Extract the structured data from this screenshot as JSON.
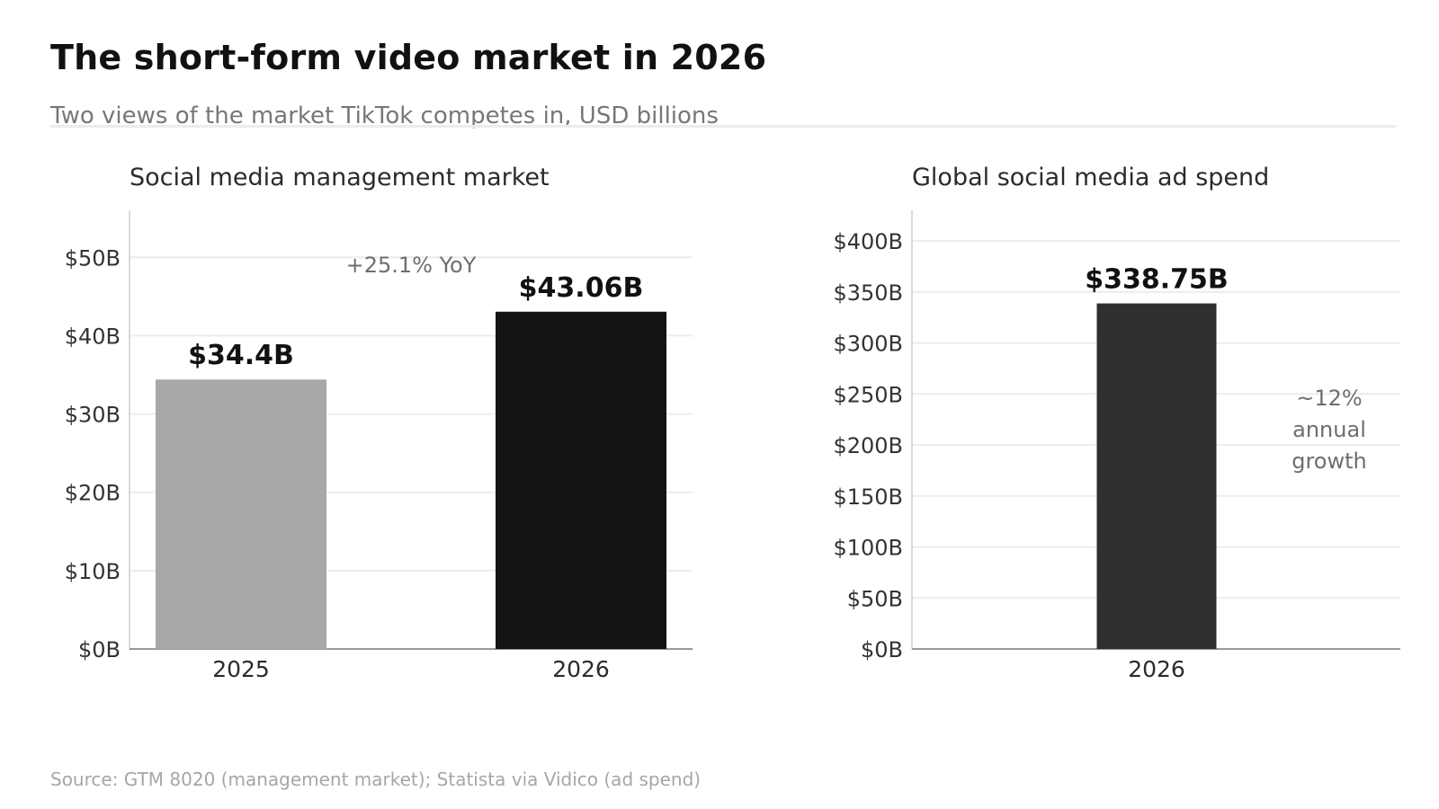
{
  "title": "The short-form video market in 2026",
  "subtitle": "Two views of the market TikTok competes in, USD billions",
  "source": "Source: GTM 8020 (management market); Statista via Vidico (ad spend)",
  "chart_data": [
    {
      "type": "bar",
      "title": "Social media management market",
      "categories": [
        "2025",
        "2026"
      ],
      "values": [
        34.4,
        43.06
      ],
      "value_labels": [
        "$34.4B",
        "$43.06B"
      ],
      "bar_colors": [
        "#a8a8a8",
        "#131313"
      ],
      "ylim": [
        0,
        56
      ],
      "y_ticks": [
        0,
        10,
        20,
        30,
        40,
        50
      ],
      "y_tick_labels": [
        "$0B",
        "$10B",
        "$20B",
        "$30B",
        "$40B",
        "$50B"
      ],
      "grid": true,
      "annotation": "+25.1% YoY"
    },
    {
      "type": "bar",
      "title": "Global social media ad spend",
      "categories": [
        "2026"
      ],
      "values": [
        338.75
      ],
      "value_labels": [
        "$338.75B"
      ],
      "bar_colors": [
        "#2f2f2f"
      ],
      "ylim": [
        0,
        430
      ],
      "y_ticks": [
        0,
        50,
        100,
        150,
        200,
        250,
        300,
        350,
        400
      ],
      "y_tick_labels": [
        "$0B",
        "$50B",
        "$100B",
        "$150B",
        "$200B",
        "$250B",
        "$300B",
        "$350B",
        "$400B"
      ],
      "grid": true,
      "annotation": [
        "~12%",
        "annual",
        "growth"
      ]
    }
  ]
}
